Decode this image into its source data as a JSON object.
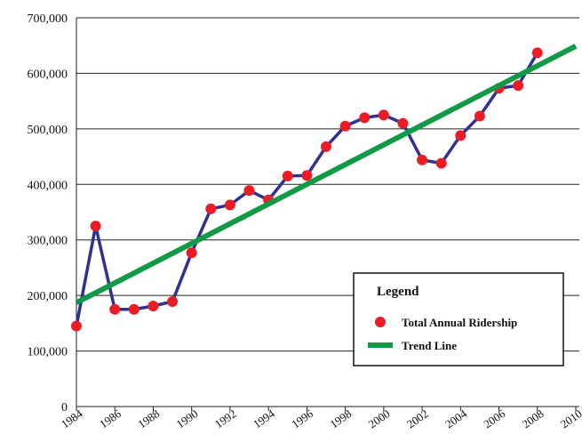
{
  "chart_data": {
    "type": "line",
    "legend_title": "Legend",
    "series": [
      {
        "name": "Total Annual Ridership",
        "color": "#ec1c24",
        "line_color": "#2e3192",
        "marker": "circle",
        "x": [
          1984,
          1985,
          1986,
          1987,
          1988,
          1989,
          1990,
          1991,
          1992,
          1993,
          1994,
          1995,
          1996,
          1997,
          1998,
          1999,
          2000,
          2001,
          2002,
          2003,
          2004,
          2005,
          2006,
          2007,
          2008
        ],
        "values": [
          145000,
          325000,
          175000,
          175000,
          181000,
          189000,
          277000,
          356000,
          363000,
          389000,
          372000,
          415000,
          416000,
          468000,
          505000,
          520000,
          525000,
          510000,
          444000,
          438000,
          488000,
          523000,
          573000,
          578000,
          637000
        ]
      },
      {
        "name": "Trend Line",
        "color": "#109a48",
        "x": [
          1984,
          2010
        ],
        "values": [
          187000,
          649000
        ]
      }
    ],
    "xlim": [
      1984,
      2010
    ],
    "xticks": [
      1984,
      1986,
      1988,
      1990,
      1992,
      1994,
      1996,
      1998,
      2000,
      2002,
      2004,
      2006,
      2008,
      2010
    ],
    "ylim": [
      0,
      700000
    ],
    "yticks": [
      0,
      {
        "value": 100000,
        "label": "100,000"
      },
      {
        "value": 200000,
        "label": "200,000"
      },
      {
        "value": 300000,
        "label": "300,000"
      },
      {
        "value": 400000,
        "label": "400,000"
      },
      {
        "value": 500000,
        "label": "500,000"
      },
      {
        "value": 600000,
        "label": "600,000"
      },
      {
        "value": 700000,
        "label": "700,000"
      }
    ],
    "grid": true
  }
}
